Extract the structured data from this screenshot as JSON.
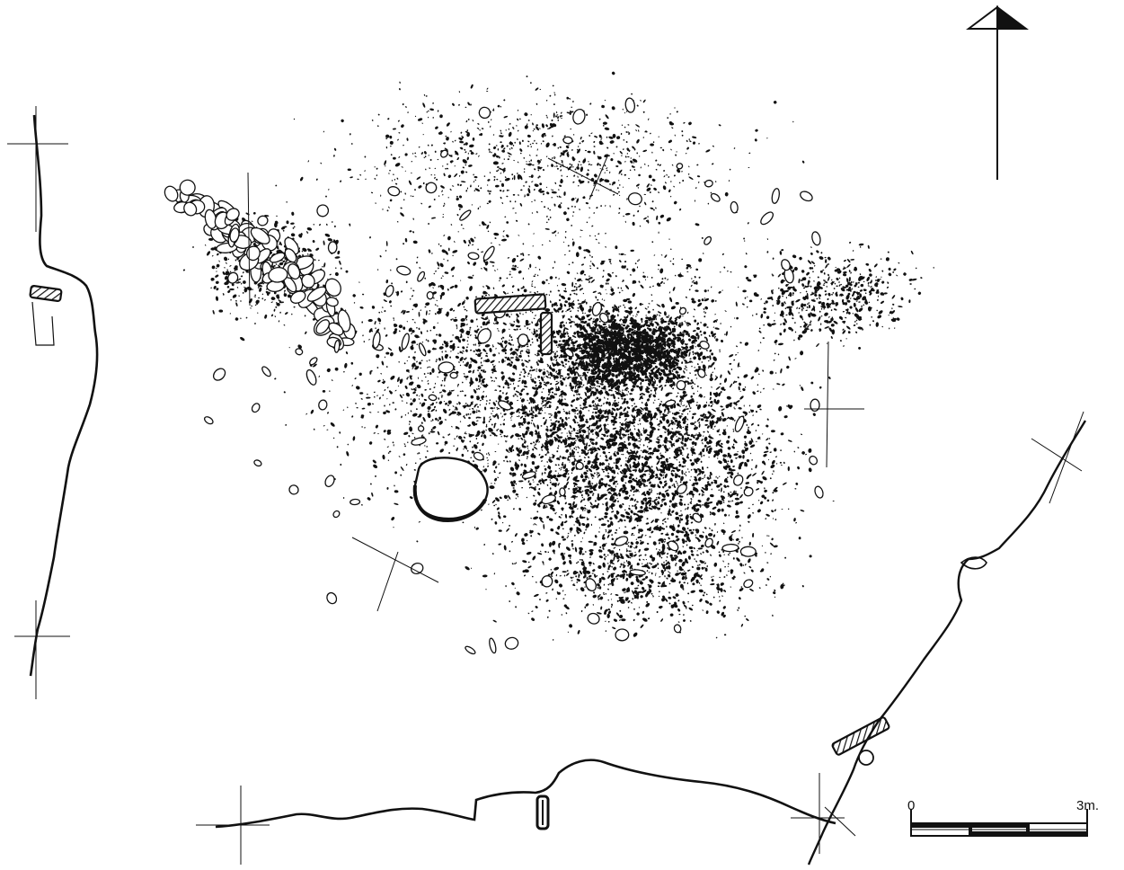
{
  "drawing": {
    "ink_color": "#111111",
    "paper_color": "#ffffff",
    "hatch_color": "#111111"
  },
  "north_arrow": {
    "icon": "north-arrow-icon"
  },
  "scale_bar": {
    "start_label": "0",
    "end_label": "3m.",
    "segments": 3
  }
}
